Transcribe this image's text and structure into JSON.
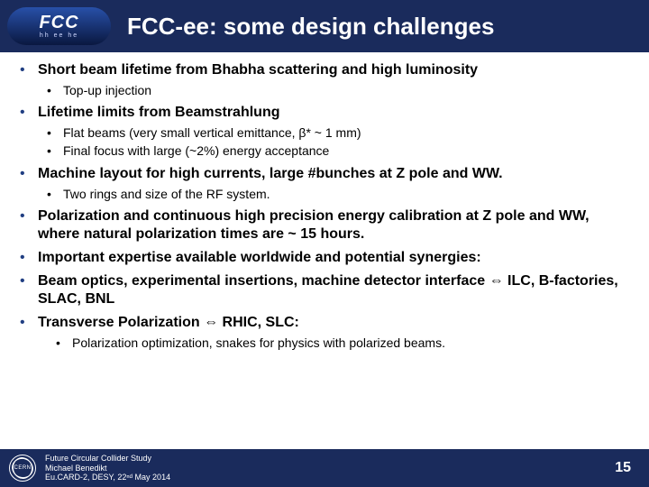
{
  "logo": {
    "main": "FCC",
    "sub": "hh  ee  he"
  },
  "title": "FCC-ee: some design challenges",
  "bullets": [
    {
      "text": "Short beam lifetime from Bhabha scattering and high luminosity",
      "sub": [
        {
          "text": "Top-up injection"
        }
      ]
    },
    {
      "text": "Lifetime limits from Beamstrahlung",
      "sub": [
        {
          "text": "Flat beams (very small vertical emittance, β* ~ 1 mm)"
        },
        {
          "text": "Final focus with large (~2%) energy acceptance"
        }
      ]
    },
    {
      "text": "Machine layout for high currents, large #bunches at Z pole and WW.",
      "sub": [
        {
          "text": "Two rings and size of the RF system."
        }
      ]
    },
    {
      "text": "Polarization and continuous high precision energy calibration at Z pole and WW, where natural polarization times are ~ 15 hours."
    },
    {
      "text": "Important expertise available worldwide and potential synergies:"
    },
    {
      "html": "Beam optics, experimental insertions, machine detector interface <span class='arrow-sym'>⇔</span> ILC, B-factories, SLAC, BNL"
    },
    {
      "html": "Transverse Polarization <span class='arrow-sym'>⇔</span> RHIC, SLC:",
      "sub2": [
        {
          "text": "Polarization optimization, snakes for physics with polarized beams."
        }
      ]
    }
  ],
  "footer": {
    "line1": "Future Circular Collider Study",
    "line2": "Michael Benedikt",
    "line3": "Eu.CARD-2, DESY, 22ⁿᵈ May 2014",
    "cern": "CERN",
    "page": "15"
  },
  "colors": {
    "band": "#1a2b5c",
    "bullet": "#203e82"
  }
}
